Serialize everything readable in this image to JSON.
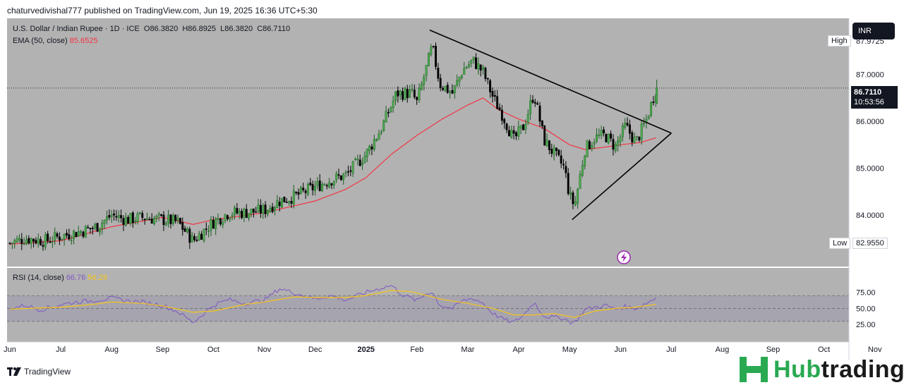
{
  "header": {
    "published": "chaturvedivishal777 published on TradingView.com, Jun 19, 2025 16:36 UTC+5:30"
  },
  "legend": {
    "symbol": "U.S. Dollar / Indian Rupee · 1D · ICE",
    "o_label": "O",
    "o": "86.3820",
    "h_label": "H",
    "h": "86.8925",
    "l_label": "L",
    "l": "86.3820",
    "c_label": "C",
    "c": "86.7110",
    "ema_label": "EMA (50, close)",
    "ema_value": "85.6525",
    "rsi_label": "RSI (14, close)",
    "rsi_value": "66.76",
    "rsi_ma_value": "56.29"
  },
  "currency_button": "INR",
  "high_label": "High",
  "high_value": "87.9725",
  "low_label": "Low",
  "low_value": "82.9550",
  "last_price": "86.7110",
  "countdown": "10:53:56",
  "footer_brand": "TradingView",
  "watermark": {
    "part1": "Hub",
    "part2": "trading"
  },
  "colors": {
    "plot_bg": "#b2b2b2",
    "candle_up": "#1b5e20",
    "candle_down": "#000000",
    "ema": "#f23645",
    "rsi": "#7e57c2",
    "rsi_ma": "#f7c518",
    "trendline": "#000000",
    "brand_green": "#2aa952"
  },
  "chart_data": {
    "type": "candlestick",
    "symbol": "USDINR",
    "timeframe": "1D",
    "price_axis": {
      "min": 82.9,
      "max": 88.2,
      "ticks": [
        84.0,
        85.0,
        86.0,
        87.0
      ],
      "tick_labels": [
        "84.0000",
        "85.0000",
        "86.0000",
        "87.0000"
      ]
    },
    "time_axis": {
      "labels": [
        "Jun",
        "Jul",
        "Aug",
        "Sep",
        "Oct",
        "Nov",
        "Dec",
        "2025",
        "Feb",
        "Mar",
        "Apr",
        "May",
        "Jun",
        "Jul",
        "Aug",
        "Sep",
        "Oct",
        "Nov"
      ],
      "month_index": [
        0,
        1,
        2,
        3,
        4,
        5,
        6,
        7,
        8,
        9,
        10,
        11,
        12,
        13,
        14,
        15,
        16,
        17
      ]
    },
    "price_path": [
      [
        0,
        83.4
      ],
      [
        0.3,
        83.5
      ],
      [
        0.7,
        83.45
      ],
      [
        1.0,
        83.55
      ],
      [
        1.4,
        83.65
      ],
      [
        1.7,
        83.75
      ],
      [
        2.0,
        84.0
      ],
      [
        2.3,
        83.9
      ],
      [
        2.6,
        83.95
      ],
      [
        3.0,
        83.9
      ],
      [
        3.3,
        83.85
      ],
      [
        3.6,
        83.45
      ],
      [
        4.0,
        83.85
      ],
      [
        4.3,
        84.05
      ],
      [
        4.6,
        84.05
      ],
      [
        5.0,
        84.1
      ],
      [
        5.3,
        84.3
      ],
      [
        5.6,
        84.4
      ],
      [
        6.0,
        84.6
      ],
      [
        6.3,
        84.75
      ],
      [
        6.6,
        84.85
      ],
      [
        7.0,
        85.3
      ],
      [
        7.3,
        85.85
      ],
      [
        7.6,
        86.6
      ],
      [
        7.9,
        86.6
      ],
      [
        8.0,
        86.4
      ],
      [
        8.2,
        87.2
      ],
      [
        8.3,
        87.6
      ],
      [
        8.45,
        86.8
      ],
      [
        8.7,
        86.6
      ],
      [
        8.9,
        87.1
      ],
      [
        9.1,
        87.3
      ],
      [
        9.3,
        87.05
      ],
      [
        9.5,
        86.5
      ],
      [
        9.7,
        86.1
      ],
      [
        9.9,
        85.6
      ],
      [
        10.1,
        85.9
      ],
      [
        10.3,
        86.6
      ],
      [
        10.5,
        85.6
      ],
      [
        10.7,
        85.3
      ],
      [
        10.9,
        85.0
      ],
      [
        11.0,
        84.4
      ],
      [
        11.1,
        84.2
      ],
      [
        11.3,
        85.4
      ],
      [
        11.5,
        85.65
      ],
      [
        11.7,
        85.7
      ],
      [
        11.9,
        85.45
      ],
      [
        12.1,
        85.9
      ],
      [
        12.3,
        85.55
      ],
      [
        12.5,
        86.0
      ],
      [
        12.7,
        86.7
      ]
    ],
    "ema50": [
      [
        0,
        83.38
      ],
      [
        1.0,
        83.45
      ],
      [
        2.0,
        83.75
      ],
      [
        3.0,
        83.95
      ],
      [
        3.6,
        83.8
      ],
      [
        4.0,
        83.9
      ],
      [
        5.0,
        84.05
      ],
      [
        5.6,
        84.2
      ],
      [
        6.0,
        84.3
      ],
      [
        6.6,
        84.55
      ],
      [
        7.0,
        84.8
      ],
      [
        7.5,
        85.3
      ],
      [
        8.0,
        85.7
      ],
      [
        8.5,
        86.05
      ],
      [
        9.0,
        86.35
      ],
      [
        9.3,
        86.5
      ],
      [
        9.6,
        86.25
      ],
      [
        10.0,
        86.05
      ],
      [
        10.5,
        85.85
      ],
      [
        11.0,
        85.5
      ],
      [
        11.3,
        85.4
      ],
      [
        11.7,
        85.45
      ],
      [
        12.0,
        85.5
      ],
      [
        12.4,
        85.55
      ],
      [
        12.7,
        85.65
      ]
    ],
    "trendlines": [
      {
        "name": "descending-resistance",
        "from": [
          8.25,
          87.95
        ],
        "to": [
          13.0,
          85.75
        ]
      },
      {
        "name": "ascending-support",
        "from": [
          11.05,
          83.9
        ],
        "to": [
          13.0,
          85.75
        ]
      }
    ],
    "current_price": 86.711,
    "high": 87.9725,
    "low": 82.955,
    "rsi": {
      "axis": {
        "ticks": [
          25,
          50,
          75
        ],
        "tick_labels": [
          "25.00",
          "50.00",
          "75.00"
        ],
        "overbought": 70,
        "oversold": 30
      },
      "values": [
        [
          0,
          50
        ],
        [
          0.3,
          55
        ],
        [
          0.6,
          48
        ],
        [
          1.0,
          56
        ],
        [
          1.3,
          60
        ],
        [
          1.6,
          62
        ],
        [
          2.0,
          66
        ],
        [
          2.3,
          62
        ],
        [
          2.6,
          60
        ],
        [
          3.0,
          55
        ],
        [
          3.3,
          45
        ],
        [
          3.6,
          28
        ],
        [
          4.0,
          55
        ],
        [
          4.3,
          64
        ],
        [
          4.6,
          58
        ],
        [
          5.0,
          63
        ],
        [
          5.3,
          81
        ],
        [
          5.6,
          74
        ],
        [
          6.0,
          65
        ],
        [
          6.3,
          70
        ],
        [
          6.6,
          63
        ],
        [
          7.0,
          75
        ],
        [
          7.3,
          82
        ],
        [
          7.5,
          86
        ],
        [
          7.7,
          72
        ],
        [
          8.0,
          62
        ],
        [
          8.2,
          74
        ],
        [
          8.3,
          76
        ],
        [
          8.45,
          55
        ],
        [
          8.7,
          50
        ],
        [
          8.9,
          62
        ],
        [
          9.1,
          66
        ],
        [
          9.3,
          58
        ],
        [
          9.5,
          42
        ],
        [
          9.7,
          33
        ],
        [
          9.9,
          28
        ],
        [
          10.1,
          40
        ],
        [
          10.3,
          60
        ],
        [
          10.5,
          38
        ],
        [
          10.7,
          36
        ],
        [
          10.9,
          35
        ],
        [
          11.0,
          29
        ],
        [
          11.1,
          28
        ],
        [
          11.3,
          48
        ],
        [
          11.5,
          52
        ],
        [
          11.7,
          55
        ],
        [
          11.9,
          49
        ],
        [
          12.1,
          53
        ],
        [
          12.3,
          50
        ],
        [
          12.5,
          58
        ],
        [
          12.7,
          66.76
        ]
      ],
      "ma": [
        [
          0,
          49
        ],
        [
          1.0,
          52
        ],
        [
          1.6,
          56
        ],
        [
          2.0,
          60
        ],
        [
          2.6,
          58
        ],
        [
          3.0,
          54
        ],
        [
          3.6,
          44
        ],
        [
          4.0,
          46
        ],
        [
          4.6,
          56
        ],
        [
          5.0,
          60
        ],
        [
          5.6,
          68
        ],
        [
          6.0,
          67
        ],
        [
          6.6,
          67
        ],
        [
          7.0,
          70
        ],
        [
          7.5,
          78
        ],
        [
          7.9,
          76
        ],
        [
          8.2,
          70
        ],
        [
          8.5,
          64
        ],
        [
          9.0,
          58
        ],
        [
          9.5,
          50
        ],
        [
          9.9,
          40
        ],
        [
          10.3,
          40
        ],
        [
          10.7,
          42
        ],
        [
          11.1,
          36
        ],
        [
          11.5,
          46
        ],
        [
          11.9,
          50
        ],
        [
          12.3,
          52
        ],
        [
          12.7,
          56.29
        ]
      ]
    }
  }
}
